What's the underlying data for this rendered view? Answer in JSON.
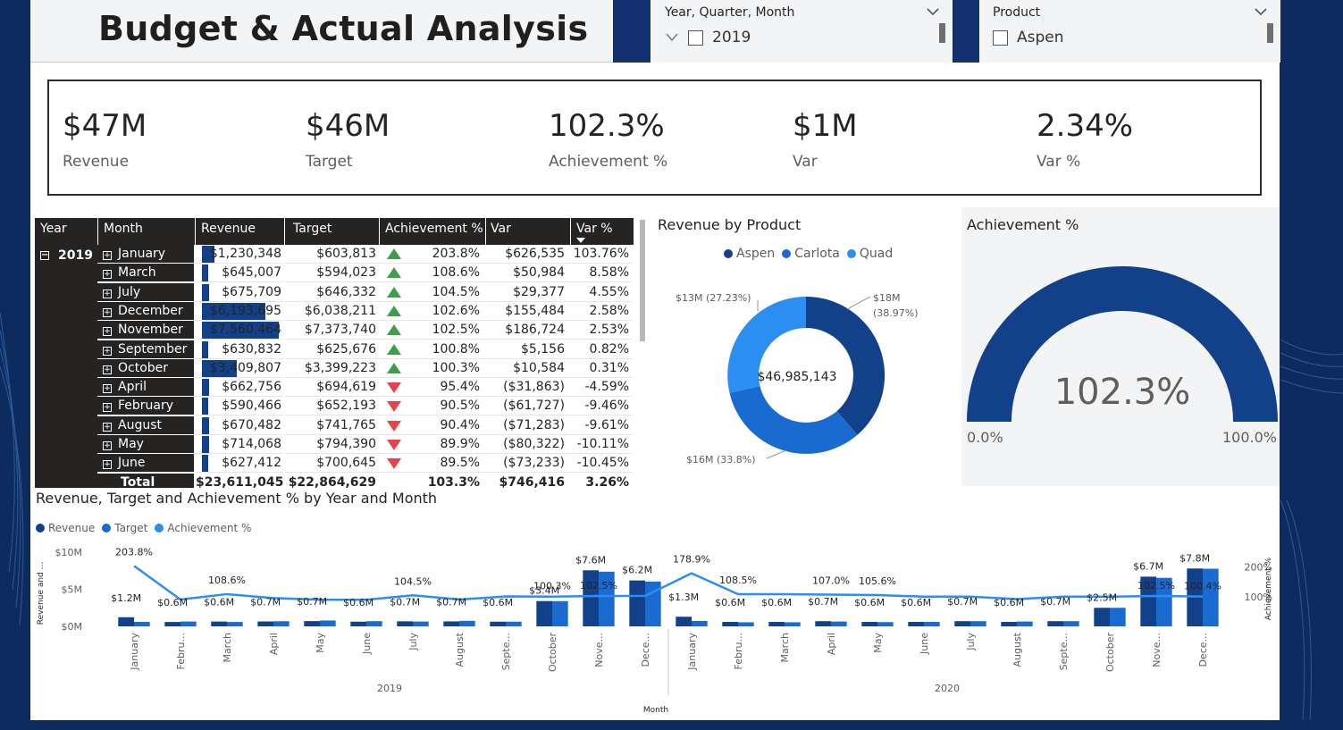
{
  "page": {
    "title": "Budget & Actual Analysis"
  },
  "slicers": {
    "date": {
      "title": "Year, Quarter, Month",
      "option": "2019"
    },
    "product": {
      "title": "Product",
      "option": "Aspen"
    }
  },
  "kpis": [
    {
      "value": "$47M",
      "label": "Revenue"
    },
    {
      "value": "$46M",
      "label": "Target"
    },
    {
      "value": "102.3%",
      "label": "Achievement %"
    },
    {
      "value": "$1M",
      "label": "Var"
    },
    {
      "value": "2.34%",
      "label": "Var %"
    }
  ],
  "matrix": {
    "headers": [
      "Year",
      "Month",
      "Revenue",
      "Target",
      "Achievement %",
      "Var",
      "Var %"
    ],
    "year": "2019",
    "rows": [
      {
        "month": "January",
        "revenue": "$1,230,348",
        "rev_share": 0.16,
        "target": "$603,813",
        "dir": "up",
        "ach": "203.8%",
        "var": "$626,535",
        "varp": "103.76%"
      },
      {
        "month": "March",
        "revenue": "$645,007",
        "rev_share": 0.08,
        "target": "$594,023",
        "dir": "up",
        "ach": "108.6%",
        "var": "$50,984",
        "varp": "8.58%"
      },
      {
        "month": "July",
        "revenue": "$675,709",
        "rev_share": 0.09,
        "target": "$646,332",
        "dir": "up",
        "ach": "104.5%",
        "var": "$29,377",
        "varp": "4.55%"
      },
      {
        "month": "December",
        "revenue": "$6,193,695",
        "rev_share": 0.82,
        "target": "$6,038,211",
        "dir": "up",
        "ach": "102.6%",
        "var": "$155,484",
        "varp": "2.58%"
      },
      {
        "month": "November",
        "revenue": "$7,560,464",
        "rev_share": 1.0,
        "target": "$7,373,740",
        "dir": "up",
        "ach": "102.5%",
        "var": "$186,724",
        "varp": "2.53%"
      },
      {
        "month": "September",
        "revenue": "$630,832",
        "rev_share": 0.08,
        "target": "$625,676",
        "dir": "up",
        "ach": "100.8%",
        "var": "$5,156",
        "varp": "0.82%"
      },
      {
        "month": "October",
        "revenue": "$3,409,807",
        "rev_share": 0.45,
        "target": "$3,399,223",
        "dir": "up",
        "ach": "100.3%",
        "var": "$10,584",
        "varp": "0.31%"
      },
      {
        "month": "April",
        "revenue": "$662,756",
        "rev_share": 0.09,
        "target": "$694,619",
        "dir": "down",
        "ach": "95.4%",
        "var": "($31,863)",
        "varp": "-4.59%"
      },
      {
        "month": "February",
        "revenue": "$590,466",
        "rev_share": 0.08,
        "target": "$652,193",
        "dir": "down",
        "ach": "90.5%",
        "var": "($61,727)",
        "varp": "-9.46%"
      },
      {
        "month": "August",
        "revenue": "$670,482",
        "rev_share": 0.09,
        "target": "$741,765",
        "dir": "down",
        "ach": "90.4%",
        "var": "($71,283)",
        "varp": "-9.61%"
      },
      {
        "month": "May",
        "revenue": "$714,068",
        "rev_share": 0.09,
        "target": "$794,390",
        "dir": "down",
        "ach": "89.9%",
        "var": "($80,322)",
        "varp": "-10.11%"
      },
      {
        "month": "June",
        "revenue": "$627,412",
        "rev_share": 0.08,
        "target": "$700,645",
        "dir": "down",
        "ach": "89.5%",
        "var": "($73,233)",
        "varp": "-10.45%"
      }
    ],
    "total": {
      "label": "Total",
      "revenue": "$23,611,045",
      "target": "$22,864,629",
      "ach": "103.3%",
      "var": "$746,416",
      "varp": "3.26%"
    }
  },
  "donut": {
    "title": "Revenue by Product",
    "legend": [
      "Aspen",
      "Carlota",
      "Quad"
    ],
    "center": "$46,985,143",
    "labels": [
      "$18M (38.97%)",
      "$16M (33.8%)",
      "$13M (27.23%)"
    ],
    "colors": {
      "aspen": "#12418a",
      "carlota": "#1a6bd0",
      "quad": "#2b8ef0"
    }
  },
  "gauge": {
    "title": "Achievement %",
    "value": "102.3%",
    "min": "0.0%",
    "max": "100.0%",
    "fill": 1.0,
    "color": "#12418a"
  },
  "chart_data": {
    "type": "bar",
    "title": "Revenue, Target and Achievement % by Year and Month",
    "legend": [
      "Revenue",
      "Target",
      "Achievement %"
    ],
    "ylabel_left": "Revenue and ...",
    "ylabel_right": "Achievement %",
    "xlabel": "Month",
    "y_ticks_left": [
      "$10M",
      "$5M",
      "$0M"
    ],
    "y_ticks_right": [
      "200%",
      "100%"
    ],
    "years": [
      "2019",
      "2020"
    ],
    "categories": [
      "January",
      "Febru...",
      "March",
      "April",
      "May",
      "June",
      "July",
      "August",
      "Septe...",
      "October",
      "Nove...",
      "Dece...",
      "January",
      "Febru...",
      "March",
      "April",
      "May",
      "June",
      "July",
      "August",
      "Septe...",
      "October",
      "Nove...",
      "Dece..."
    ],
    "series": [
      {
        "name": "Revenue",
        "values": [
          1.23,
          0.59,
          0.65,
          0.66,
          0.71,
          0.63,
          0.68,
          0.67,
          0.63,
          3.41,
          7.56,
          6.19,
          1.3,
          0.6,
          0.6,
          0.7,
          0.6,
          0.6,
          0.7,
          0.6,
          0.7,
          2.5,
          6.7,
          7.8
        ]
      },
      {
        "name": "Target",
        "values": [
          0.6,
          0.65,
          0.59,
          0.69,
          0.79,
          0.7,
          0.65,
          0.74,
          0.63,
          3.4,
          7.37,
          6.04,
          0.73,
          0.55,
          0.55,
          0.65,
          0.57,
          0.6,
          0.7,
          0.65,
          0.7,
          2.5,
          6.54,
          7.77
        ]
      },
      {
        "name": "Achievement %",
        "values": [
          203.8,
          90.5,
          108.6,
          95.4,
          89.9,
          89.5,
          104.5,
          90.4,
          100.8,
          100.3,
          102.5,
          102.6,
          178.9,
          108.5,
          108.5,
          107.0,
          105.6,
          100,
          100,
          92,
          100,
          100,
          102.5,
          100.4
        ]
      }
    ],
    "revenue_labels": [
      "$1.2M",
      "$0.6M",
      "$0.6M",
      "$0.7M",
      "$0.7M",
      "$0.6M",
      "$0.7M",
      "$0.7M",
      "$0.6M",
      "$3.4M",
      "$7.6M",
      "$6.2M",
      "$1.3M",
      "$0.6M",
      "$0.6M",
      "$0.7M",
      "$0.6M",
      "$0.6M",
      "$0.7M",
      "$0.6M",
      "$0.7M",
      "$2.5M",
      "$6.7M",
      "$7.8M"
    ],
    "ach_labels": [
      "203.8%",
      "",
      "108.6%",
      "",
      "",
      "",
      "104.5%",
      "",
      "",
      "100.3%",
      "102.5%",
      "",
      "178.9%",
      "108.5%",
      "",
      "107.0%",
      "105.6%",
      "",
      "",
      "",
      "",
      "",
      "102.5%",
      "100.4%"
    ],
    "ylim_left": [
      0,
      10
    ],
    "ylim_right": [
      0,
      250
    ]
  }
}
